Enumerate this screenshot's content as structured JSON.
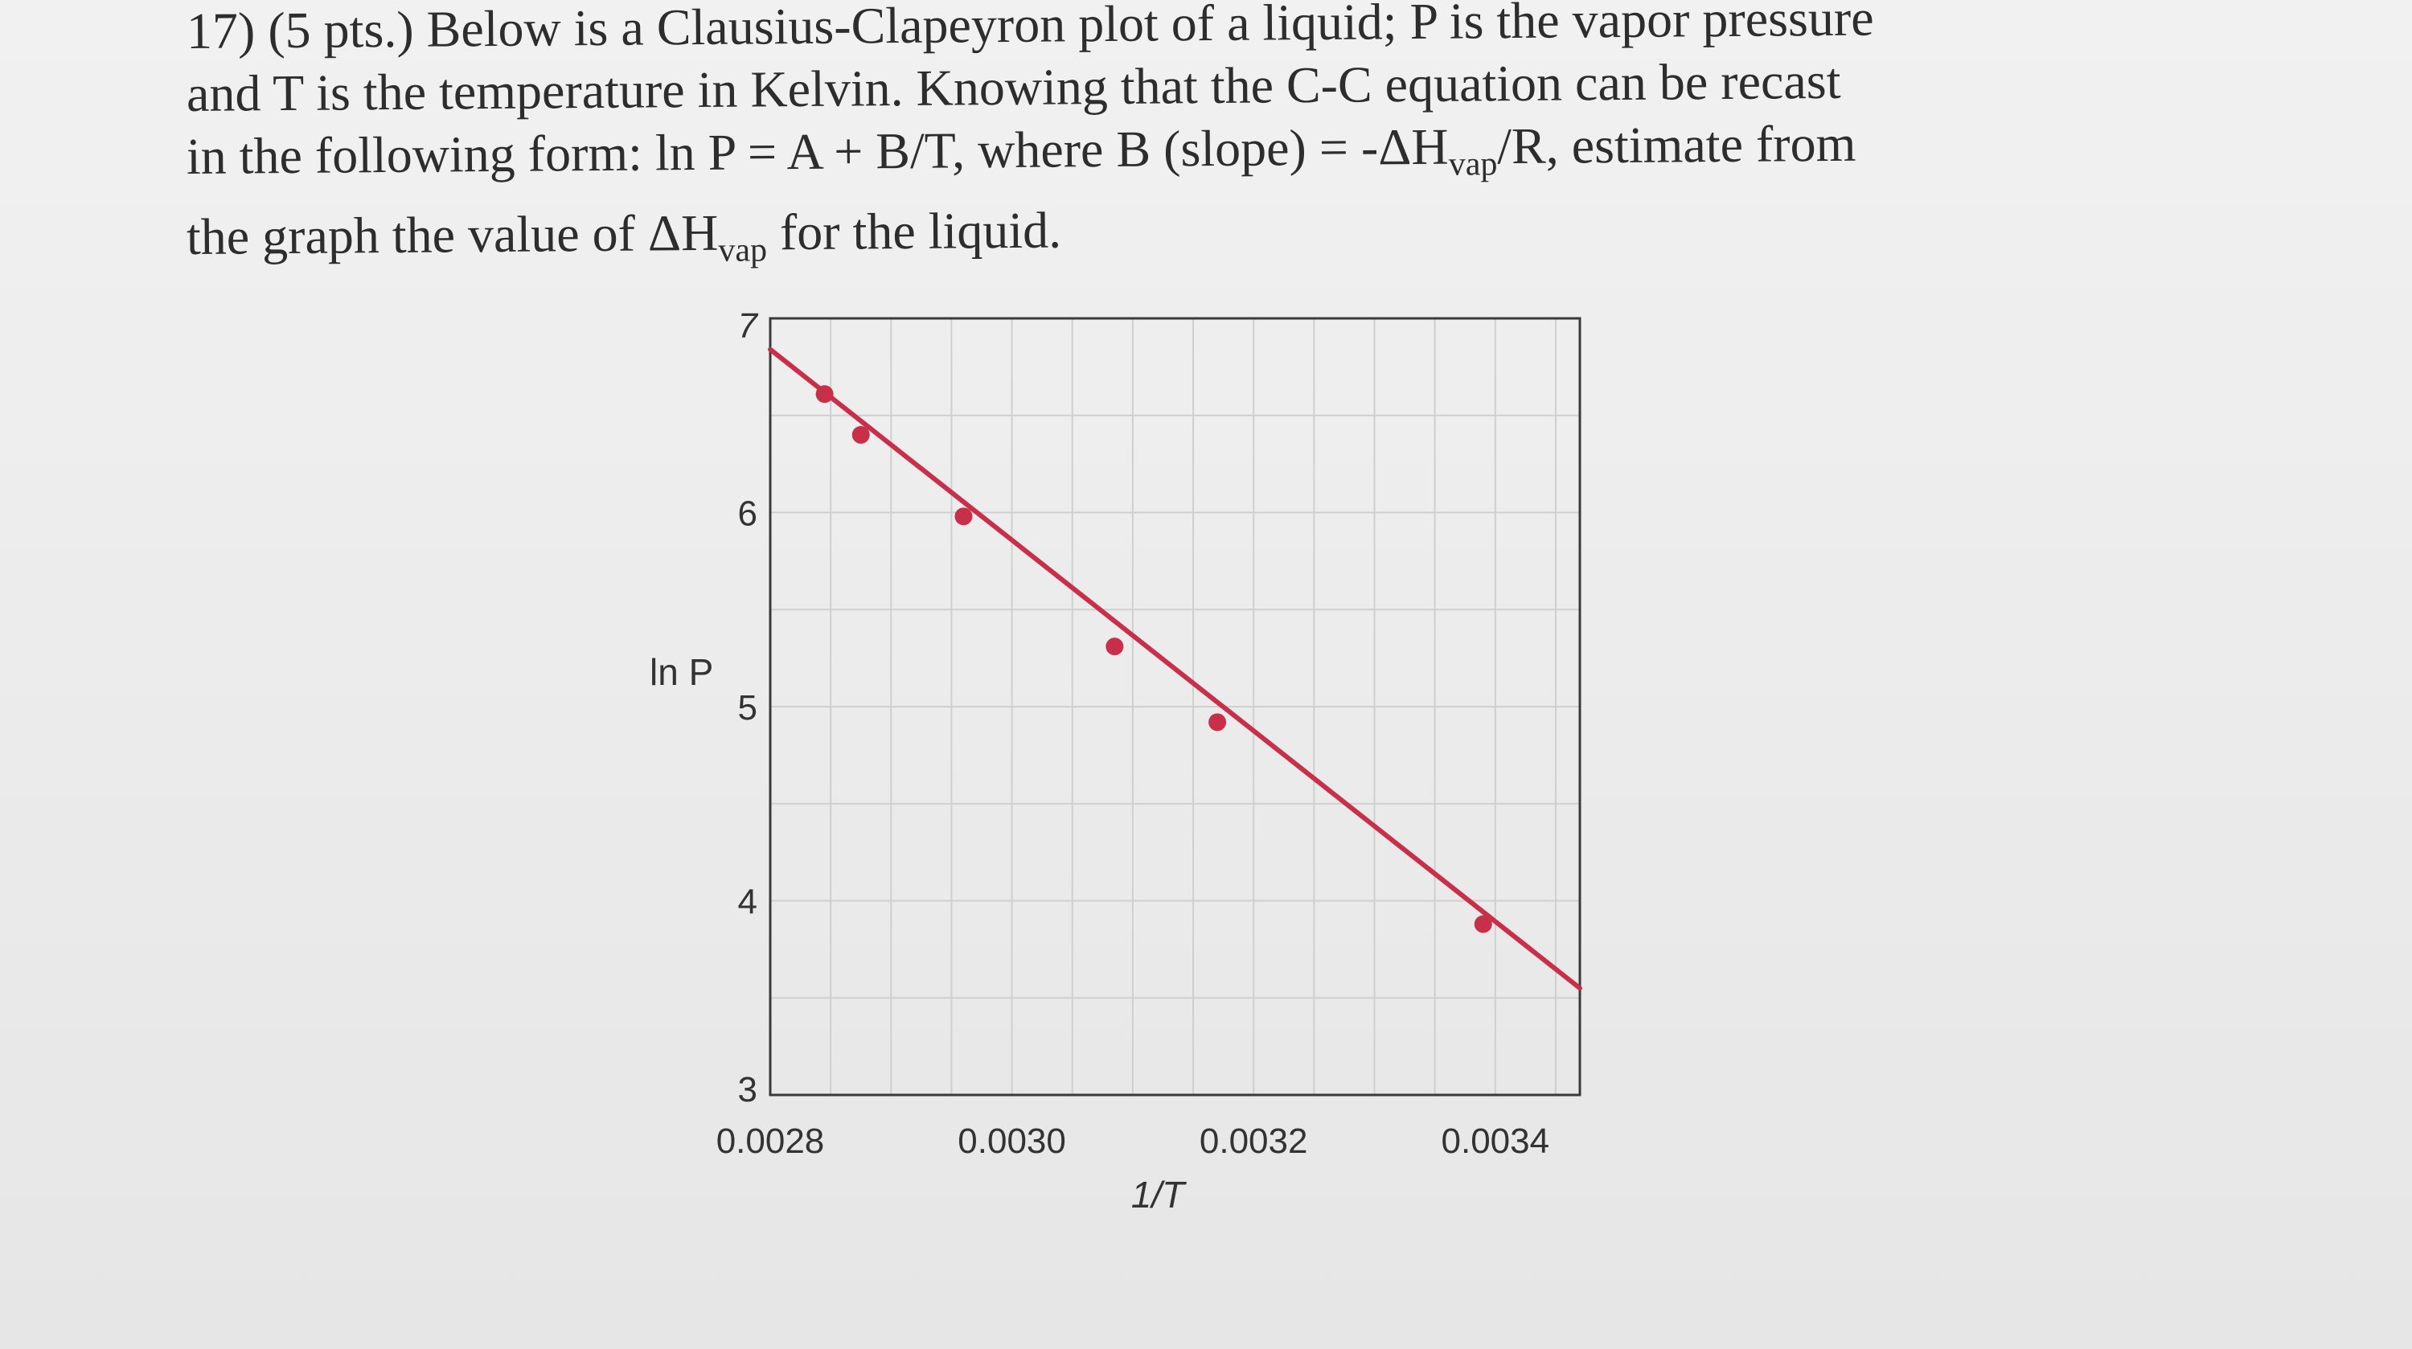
{
  "question": {
    "line1": "17) (5 pts.) Below is a Clausius-Clapeyron plot of a liquid; P is the vapor pressure",
    "line2": "and T is the temperature in Kelvin.  Knowing that the C-C equation can be recast",
    "line3_a": "in the following form:  ln P = A + B/T, where B (slope)  = -ΔH",
    "line3_sub": "vap",
    "line3_b": "/R, estimate from",
    "line4_a": "the graph the value of ΔH",
    "line4_sub": "vap",
    "line4_b": " for the liquid."
  },
  "chart_data": {
    "type": "scatter",
    "xlabel": "1/T",
    "ylabel": "ln P",
    "xlim": [
      0.0028,
      0.00347
    ],
    "ylim": [
      3,
      7
    ],
    "x_ticks": [
      0.0028,
      0.003,
      0.0032,
      0.0034
    ],
    "x_tick_labels": [
      "0.0028",
      "0.0030",
      "0.0032",
      "0.0034"
    ],
    "y_ticks": [
      3,
      4,
      5,
      6,
      7
    ],
    "y_tick_labels": [
      "3",
      "4",
      "5",
      "6",
      "7"
    ],
    "grid": true,
    "series": [
      {
        "points": [
          {
            "x": 0.002845,
            "y": 6.61
          },
          {
            "x": 0.002875,
            "y": 6.4
          },
          {
            "x": 0.00296,
            "y": 5.98
          },
          {
            "x": 0.003085,
            "y": 5.31
          },
          {
            "x": 0.00317,
            "y": 4.92
          },
          {
            "x": 0.00339,
            "y": 3.88
          }
        ],
        "fit_line": {
          "x0": 0.0028,
          "y0": 6.84,
          "x1": 0.00347,
          "y1": 3.55
        },
        "color": "#c8304a"
      }
    ]
  }
}
